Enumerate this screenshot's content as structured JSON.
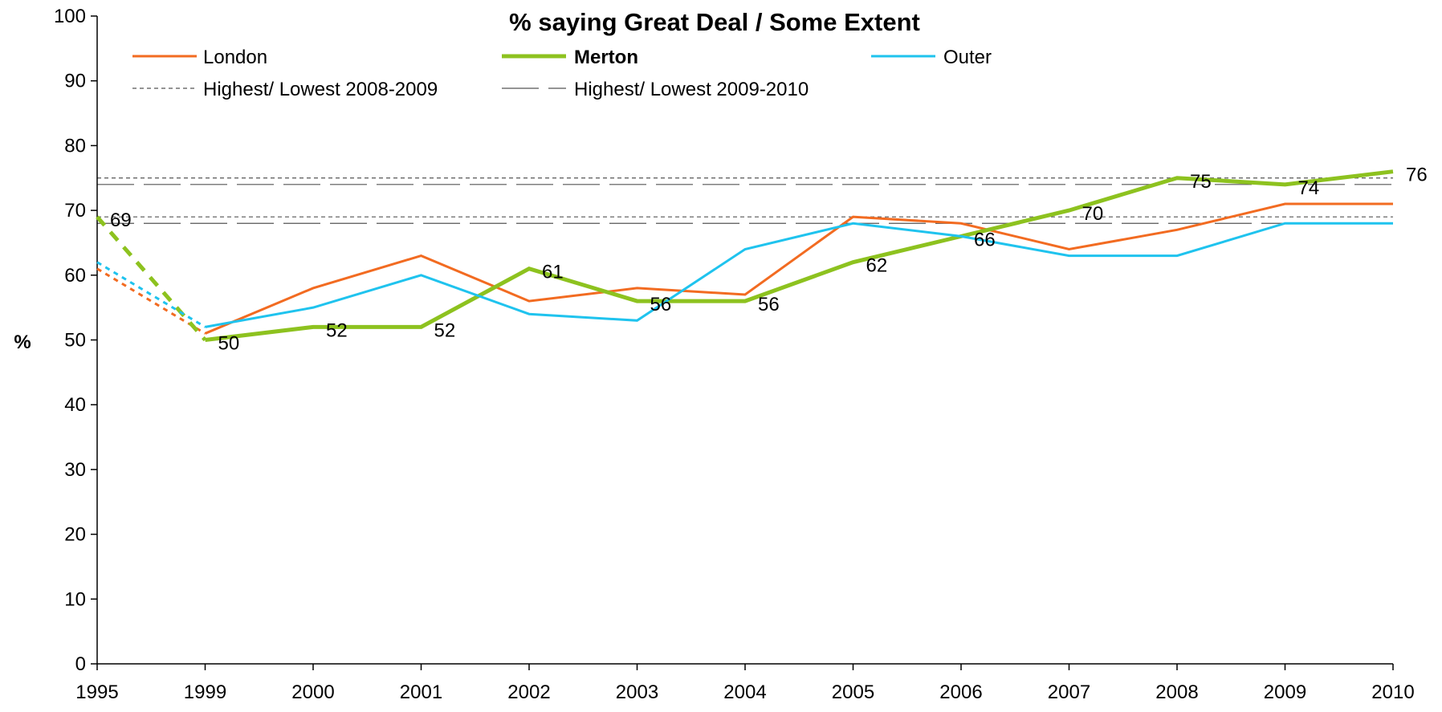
{
  "chart_data": {
    "type": "line",
    "title": "% saying Great Deal / Some Extent",
    "ylabel": "%",
    "xlabel": "",
    "x": [
      "1995",
      "1999",
      "2000",
      "2001",
      "2002",
      "2003",
      "2004",
      "2005",
      "2006",
      "2007",
      "2008",
      "2009",
      "2010"
    ],
    "ylim": [
      0,
      100
    ],
    "yticks": [
      "0",
      "10",
      "20",
      "30",
      "40",
      "50",
      "60",
      "70",
      "80",
      "90",
      "100"
    ],
    "grid": false,
    "legend_position": "top",
    "series": [
      {
        "name": "London",
        "color": "#F26B21",
        "values": [
          61,
          51,
          58,
          63,
          56,
          58,
          57,
          69,
          68,
          64,
          67,
          71,
          71
        ],
        "dotted_segments": [
          0
        ]
      },
      {
        "name": "Merton",
        "color": "#8DC21F",
        "bold": true,
        "values": [
          69,
          50,
          52,
          52,
          61,
          56,
          56,
          62,
          66,
          70,
          75,
          74,
          76
        ],
        "dotted_segments": [
          0
        ],
        "data_labels": [
          "69",
          "50",
          "52",
          "52",
          "61",
          "56",
          "56",
          "62",
          "66",
          "70",
          "75",
          "74",
          "76"
        ]
      },
      {
        "name": "Outer",
        "color": "#1FC3EE",
        "values": [
          62,
          52,
          55,
          60,
          54,
          53,
          64,
          68,
          66,
          63,
          63,
          68,
          68
        ],
        "dotted_segments": [
          0
        ]
      }
    ],
    "reference_lines": [
      {
        "name": "Highest/ Lowest 2008-2009",
        "style": "short-dash",
        "values": [
          75,
          69
        ]
      },
      {
        "name": "Highest/ Lowest 2009-2010",
        "style": "long-dash",
        "values": [
          74,
          68
        ]
      }
    ]
  }
}
